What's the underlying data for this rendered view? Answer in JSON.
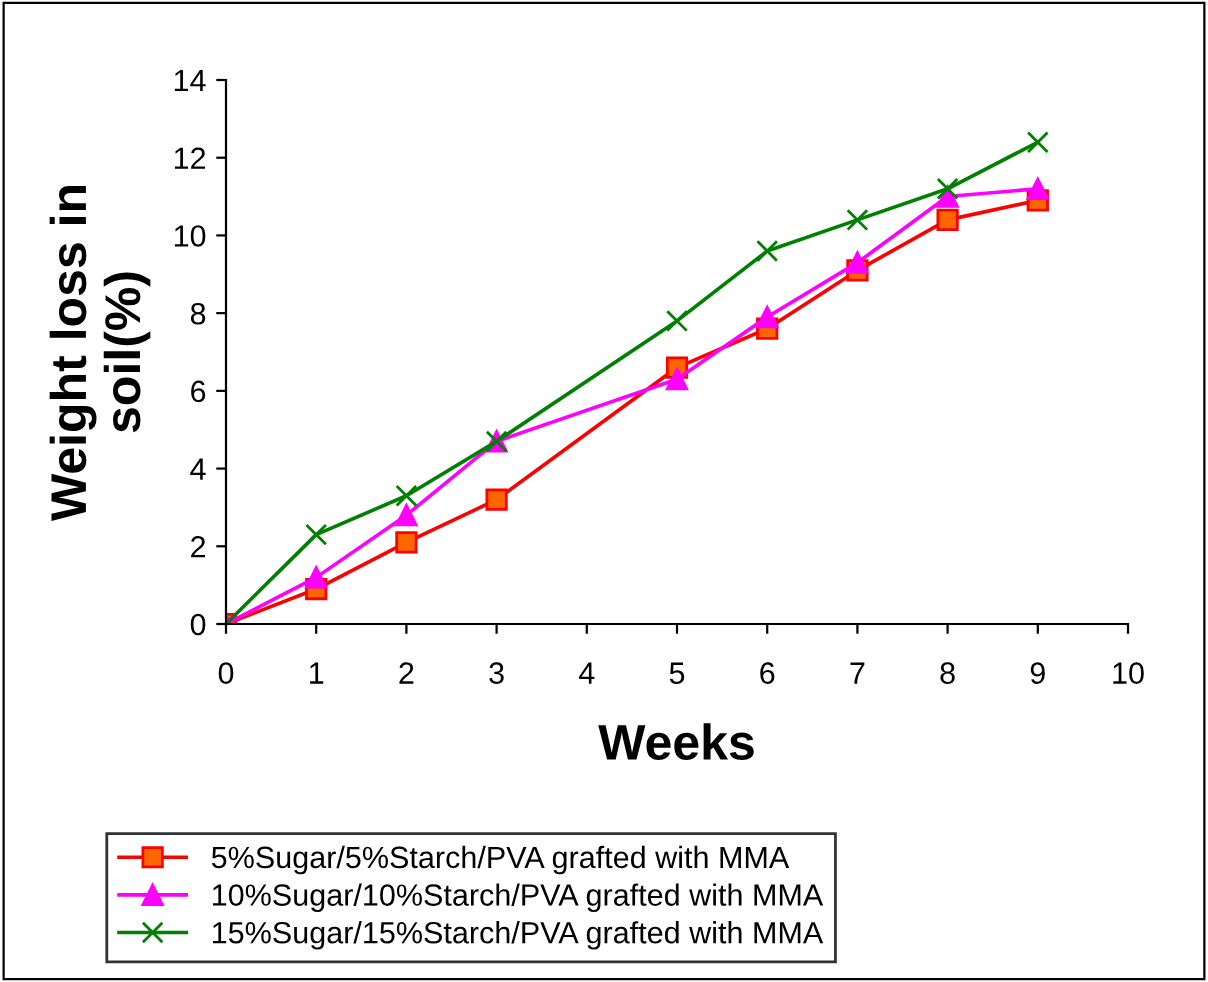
{
  "chart_data": {
    "type": "line",
    "xlabel": "Weeks",
    "ylabel": "Weight loss in\nsoil(%)",
    "x": [
      0,
      1,
      2,
      3,
      5,
      6,
      7,
      8,
      9
    ],
    "series": [
      {
        "name": "5%Sugar/5%Starch/PVA grafted with MMA",
        "color": "#ff0000",
        "marker": "square",
        "values": [
          0,
          0.9,
          2.1,
          3.2,
          6.6,
          7.6,
          9.1,
          10.4,
          10.9
        ]
      },
      {
        "name": "10%Sugar/10%Starch/PVA grafted with MMA",
        "color": "#ff00ff",
        "marker": "triangle",
        "values": [
          0,
          1.2,
          2.8,
          4.7,
          6.3,
          7.9,
          9.3,
          11.0,
          11.2
        ]
      },
      {
        "name": "15%Sugar/15%Starch/PVA grafted with MMA",
        "color": "#008000",
        "marker": "cross",
        "values": [
          0,
          2.3,
          3.3,
          4.7,
          7.8,
          9.6,
          10.4,
          11.2,
          12.4
        ]
      }
    ],
    "xlim": [
      0,
      10
    ],
    "xticks": [
      0,
      1,
      2,
      3,
      4,
      5,
      6,
      7,
      8,
      9,
      10
    ],
    "ylim": [
      0,
      14
    ],
    "yticks": [
      0,
      2,
      4,
      6,
      8,
      10,
      12,
      14
    ],
    "grid": false,
    "legend": "bottom"
  }
}
